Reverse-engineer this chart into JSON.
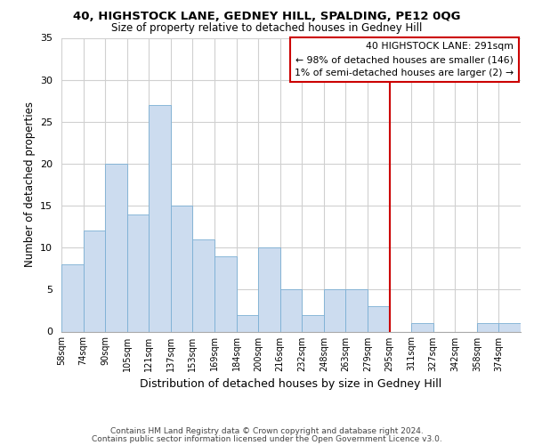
{
  "title": "40, HIGHSTOCK LANE, GEDNEY HILL, SPALDING, PE12 0QG",
  "subtitle": "Size of property relative to detached houses in Gedney Hill",
  "xlabel": "Distribution of detached houses by size in Gedney Hill",
  "ylabel": "Number of detached properties",
  "footer_line1": "Contains HM Land Registry data © Crown copyright and database right 2024.",
  "footer_line2": "Contains public sector information licensed under the Open Government Licence v3.0.",
  "bin_labels": [
    "58sqm",
    "74sqm",
    "90sqm",
    "105sqm",
    "121sqm",
    "137sqm",
    "153sqm",
    "169sqm",
    "184sqm",
    "200sqm",
    "216sqm",
    "232sqm",
    "248sqm",
    "263sqm",
    "279sqm",
    "295sqm",
    "311sqm",
    "327sqm",
    "342sqm",
    "358sqm",
    "374sqm"
  ],
  "bar_heights": [
    8,
    12,
    20,
    14,
    27,
    15,
    11,
    9,
    2,
    10,
    5,
    2,
    5,
    5,
    3,
    0,
    1,
    0,
    0,
    1,
    1
  ],
  "bar_color": "#ccdcef",
  "bar_edge_color": "#7bafd4",
  "grid_color": "#d0d0d0",
  "property_line_idx": 15,
  "property_line_color": "#cc0000",
  "annotation_title": "40 HIGHSTOCK LANE: 291sqm",
  "annotation_line1": "← 98% of detached houses are smaller (146)",
  "annotation_line2": "1% of semi-detached houses are larger (2) →",
  "annotation_box_color": "#ffffff",
  "annotation_box_edge_color": "#cc0000",
  "ylim": [
    0,
    35
  ],
  "yticks": [
    0,
    5,
    10,
    15,
    20,
    25,
    30,
    35
  ],
  "num_bins": 21
}
